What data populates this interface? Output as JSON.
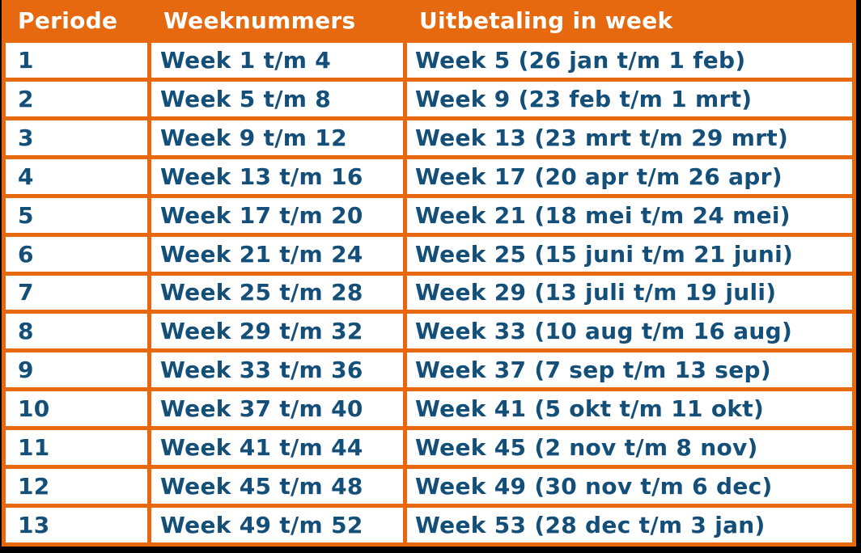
{
  "page": {
    "background_color": "#000000"
  },
  "table": {
    "title": "uitbetalingsschema-per-periode",
    "columns": [
      "Periode",
      "Weeknummers",
      "Uitbetaling in week"
    ],
    "rows": [
      [
        "1",
        "Week 1 t/m 4",
        "Week 5 (26 jan t/m 1 feb)"
      ],
      [
        "2",
        "Week 5 t/m 8",
        "Week 9 (23 feb t/m 1 mrt)"
      ],
      [
        "3",
        "Week 9 t/m 12",
        "Week 13 (23 mrt t/m 29 mrt)"
      ],
      [
        "4",
        "Week 13 t/m 16",
        "Week 17 (20 apr t/m 26 apr)"
      ],
      [
        "5",
        "Week 17 t/m 20",
        "Week 21 (18 mei t/m 24 mei)"
      ],
      [
        "6",
        "Week 21 t/m 24",
        "Week 25 (15 juni t/m 21 juni)"
      ],
      [
        "7",
        "Week 25 t/m 28",
        "Week 29 (13 juli t/m 19 juli)"
      ],
      [
        "8",
        "Week 29 t/m 32",
        "Week 33 (10 aug t/m 16 aug)"
      ],
      [
        "9",
        "Week 33 t/m 36",
        "Week 37 (7 sep t/m 13 sep)"
      ],
      [
        "10",
        "Week 37 t/m 40",
        "Week 41 (5 okt t/m 11 okt)"
      ],
      [
        "11",
        "Week 41 t/m 44",
        "Week 45 (2 nov t/m 8 nov)"
      ],
      [
        "12",
        "Week 45 t/m 48",
        "Week 49 (30 nov t/m 6 dec)"
      ],
      [
        "13",
        "Week 49 t/m 52",
        "Week 53 (28 dec t/m 3 jan)"
      ]
    ],
    "colors": {
      "canvas_bg": "#000000",
      "header_bg": "#e6690f",
      "border": "#e6690f",
      "header_text": "#ffffff",
      "body_text": "#134f78",
      "cell_bg": "#ffffff"
    }
  },
  "chart_data": {
    "type": "table",
    "columns": [
      "Periode",
      "Weeknummers",
      "Uitbetaling in week"
    ],
    "rows": [
      [
        "1",
        "Week 1 t/m 4",
        "Week 5 (26 jan t/m 1 feb)"
      ],
      [
        "2",
        "Week 5 t/m 8",
        "Week 9 (23 feb t/m 1 mrt)"
      ],
      [
        "3",
        "Week 9 t/m 12",
        "Week 13 (23 mrt t/m 29 mrt)"
      ],
      [
        "4",
        "Week 13 t/m 16",
        "Week 17 (20 apr t/m 26 apr)"
      ],
      [
        "5",
        "Week 17 t/m 20",
        "Week 21 (18 mei t/m 24 mei)"
      ],
      [
        "6",
        "Week 21 t/m 24",
        "Week 25 (15 juni t/m 21 juni)"
      ],
      [
        "7",
        "Week 25 t/m 28",
        "Week 29 (13 juli t/m 19 juli)"
      ],
      [
        "8",
        "Week 29 t/m 32",
        "Week 33 (10 aug t/m 16 aug)"
      ],
      [
        "9",
        "Week 33 t/m 36",
        "Week 37 (7 sep t/m 13 sep)"
      ],
      [
        "10",
        "Week 37 t/m 40",
        "Week 41 (5 okt t/m 11 okt)"
      ],
      [
        "11",
        "Week 41 t/m 44",
        "Week 45 (2 nov t/m 8 nov)"
      ],
      [
        "12",
        "Week 45 t/m 48",
        "Week 49 (30 nov t/m 6 dec)"
      ],
      [
        "13",
        "Week 49 t/m 52",
        "Week 53 (28 dec t/m 3 jan)"
      ]
    ]
  }
}
